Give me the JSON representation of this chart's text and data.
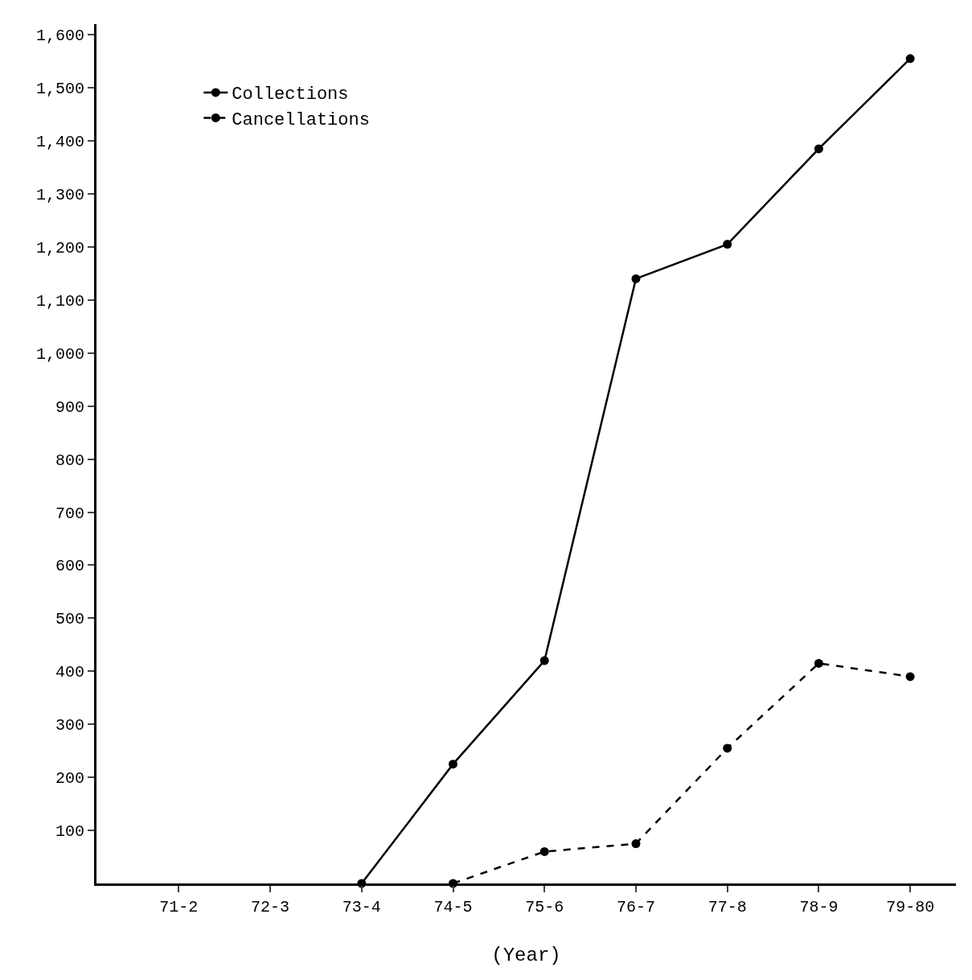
{
  "chart_data": {
    "type": "line",
    "xlabel": "(Year)",
    "categories": [
      "71-2",
      "72-3",
      "73-4",
      "74-5",
      "75-6",
      "76-7",
      "77-8",
      "78-9",
      "79-80"
    ],
    "series": [
      {
        "name": "Collections",
        "color": "#000000",
        "line_style": "solid",
        "values": [
          null,
          null,
          0,
          225,
          420,
          1140,
          1205,
          1385,
          1555
        ]
      },
      {
        "name": "Cancellations",
        "color": "#000000",
        "line_style": "dashed",
        "values": [
          null,
          null,
          null,
          0,
          60,
          75,
          255,
          415,
          390
        ]
      }
    ],
    "ylim": [
      0,
      1620
    ],
    "yticks": [
      100,
      200,
      300,
      400,
      500,
      600,
      700,
      800,
      900,
      {
        "value": 1000,
        "label": "1,000"
      },
      {
        "value": 1100,
        "label": "1,100"
      },
      {
        "value": 1200,
        "label": "1,200"
      },
      {
        "value": 1300,
        "label": "1,300"
      },
      {
        "value": 1400,
        "label": "1,400"
      },
      {
        "value": 1500,
        "label": "1,500"
      },
      {
        "value": 1600,
        "label": "1,600"
      }
    ],
    "marker": "circle",
    "legend": "top left"
  }
}
